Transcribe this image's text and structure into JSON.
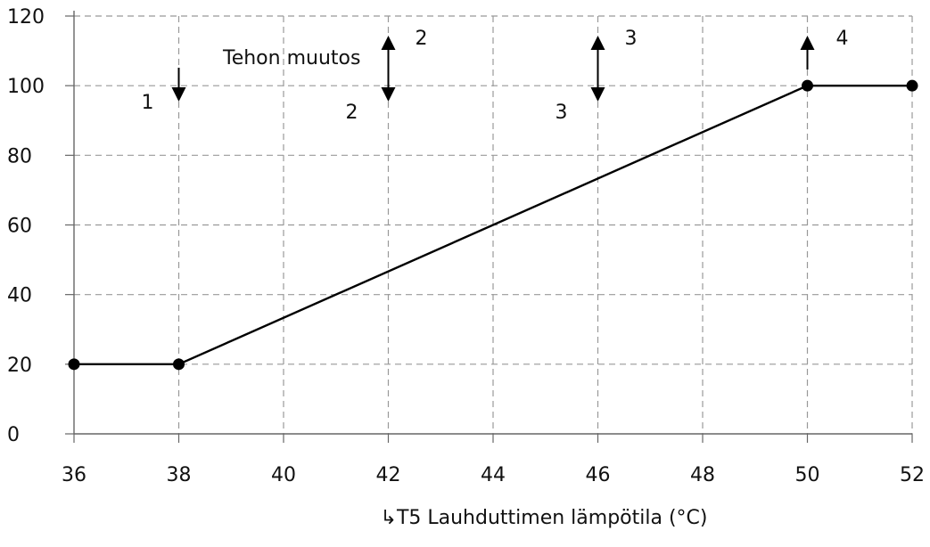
{
  "chart_data": {
    "type": "line",
    "title": "",
    "xlabel": "↳T5 Lauhduttimen lämpötila (°C)",
    "ylabel": "",
    "xlim": [
      36,
      52
    ],
    "ylim": [
      0,
      120
    ],
    "x_ticks": [
      36,
      38,
      40,
      42,
      44,
      46,
      48,
      50,
      52
    ],
    "y_ticks": [
      0,
      20,
      40,
      60,
      80,
      100,
      120
    ],
    "grid": true,
    "series": [
      {
        "x": [
          36,
          38,
          50,
          52
        ],
        "y": [
          20,
          20,
          100,
          100
        ]
      }
    ],
    "annotations": {
      "label": "Tehon muutos",
      "arrows": [
        {
          "x": 38,
          "direction": "down",
          "labels": [
            "1"
          ]
        },
        {
          "x": 42,
          "direction": "both",
          "labels": [
            "2",
            "2"
          ]
        },
        {
          "x": 46,
          "direction": "both",
          "labels": [
            "3",
            "3"
          ]
        },
        {
          "x": 50,
          "direction": "up",
          "labels": [
            "4"
          ]
        }
      ]
    },
    "colors": {
      "line": "#000000",
      "grid": "#999999",
      "axis": "#666666"
    }
  }
}
